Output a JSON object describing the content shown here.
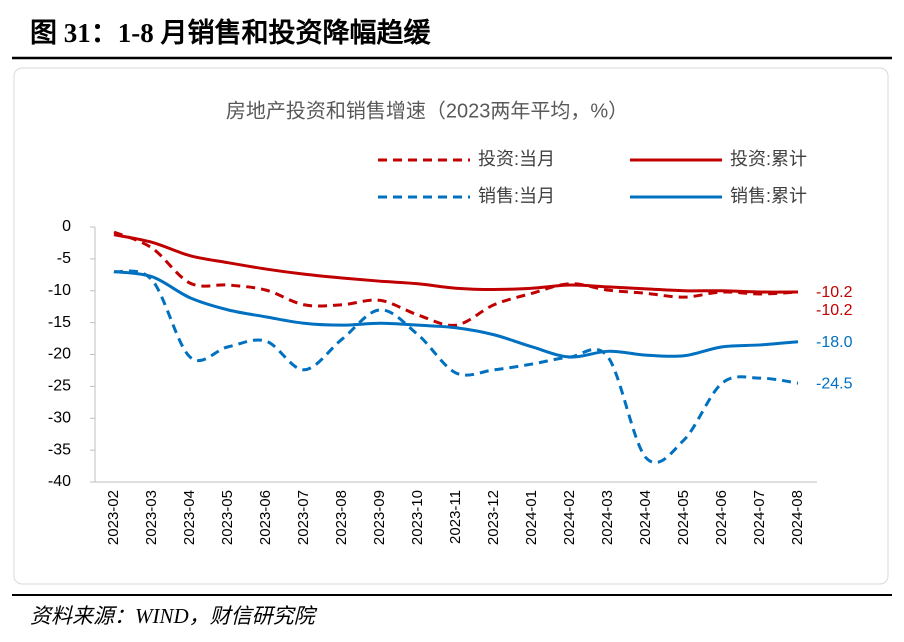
{
  "figure_title": "图 31：1-8 月销售和投资降幅趋缓",
  "source": "资料来源：WIND，财信研究院",
  "chart_data": {
    "type": "line",
    "title": "房地产投资和销售增速（2023两年平均，%）",
    "categories": [
      "2023-02",
      "2023-03",
      "2023-04",
      "2023-05",
      "2023-06",
      "2023-07",
      "2023-08",
      "2023-09",
      "2023-10",
      "2023-11",
      "2023-12",
      "2024-01",
      "2024-02",
      "2024-03",
      "2024-04",
      "2024-05",
      "2024-06",
      "2024-07",
      "2024-08"
    ],
    "ylim": [
      -40,
      0
    ],
    "yticks": [
      0,
      -5,
      -10,
      -15,
      -20,
      -25,
      -30,
      -35,
      -40
    ],
    "series": [
      {
        "name": "投资:当月",
        "color": "#c00000",
        "style": "dashed",
        "values": [
          -0.8,
          -3.3,
          -8.8,
          -9.1,
          -9.9,
          -12.2,
          -12.2,
          -11.5,
          -13.8,
          -15.4,
          -12.2,
          -10.4,
          -8.9,
          -9.9,
          -10.4,
          -11.0,
          -10.2,
          -10.5,
          -10.2
        ],
        "value_labels": [
          null,
          null,
          null,
          null,
          null,
          null,
          null,
          null,
          null,
          null,
          null,
          null,
          null,
          null,
          null,
          null,
          null,
          null,
          "-10.2"
        ]
      },
      {
        "name": "投资:累计",
        "color": "#c00000",
        "style": "solid",
        "values": [
          -1.2,
          -2.4,
          -4.5,
          -5.6,
          -6.6,
          -7.4,
          -8.0,
          -8.5,
          -8.9,
          -9.6,
          -9.8,
          -9.6,
          -9.1,
          -9.4,
          -9.7,
          -10.0,
          -10.0,
          -10.2,
          -10.2
        ],
        "value_labels": [
          null,
          null,
          null,
          null,
          null,
          null,
          null,
          null,
          null,
          null,
          null,
          null,
          null,
          null,
          null,
          null,
          null,
          null,
          "-10.2"
        ]
      },
      {
        "name": "销售:当月",
        "color": "#0070c0",
        "style": "dashed",
        "values": [
          -7.0,
          -8.3,
          -20.4,
          -18.8,
          -17.9,
          -22.4,
          -17.6,
          -13.0,
          -16.9,
          -22.9,
          -22.4,
          -21.5,
          -20.4,
          -20.4,
          -36.2,
          -33.4,
          -24.5,
          -23.7,
          -24.5
        ],
        "value_labels": [
          null,
          null,
          null,
          null,
          null,
          null,
          null,
          null,
          null,
          null,
          null,
          null,
          null,
          null,
          null,
          null,
          null,
          null,
          "-24.5"
        ]
      },
      {
        "name": "销售:累计",
        "color": "#0070c0",
        "style": "solid",
        "values": [
          -7.0,
          -7.8,
          -11.1,
          -13.0,
          -14.1,
          -15.1,
          -15.4,
          -15.1,
          -15.4,
          -15.8,
          -16.9,
          -18.8,
          -20.4,
          -19.5,
          -20.1,
          -20.2,
          -18.8,
          -18.5,
          -18.0
        ],
        "value_labels": [
          null,
          null,
          null,
          null,
          null,
          null,
          null,
          null,
          null,
          null,
          null,
          null,
          null,
          null,
          null,
          null,
          null,
          null,
          "-18.0"
        ]
      }
    ]
  }
}
